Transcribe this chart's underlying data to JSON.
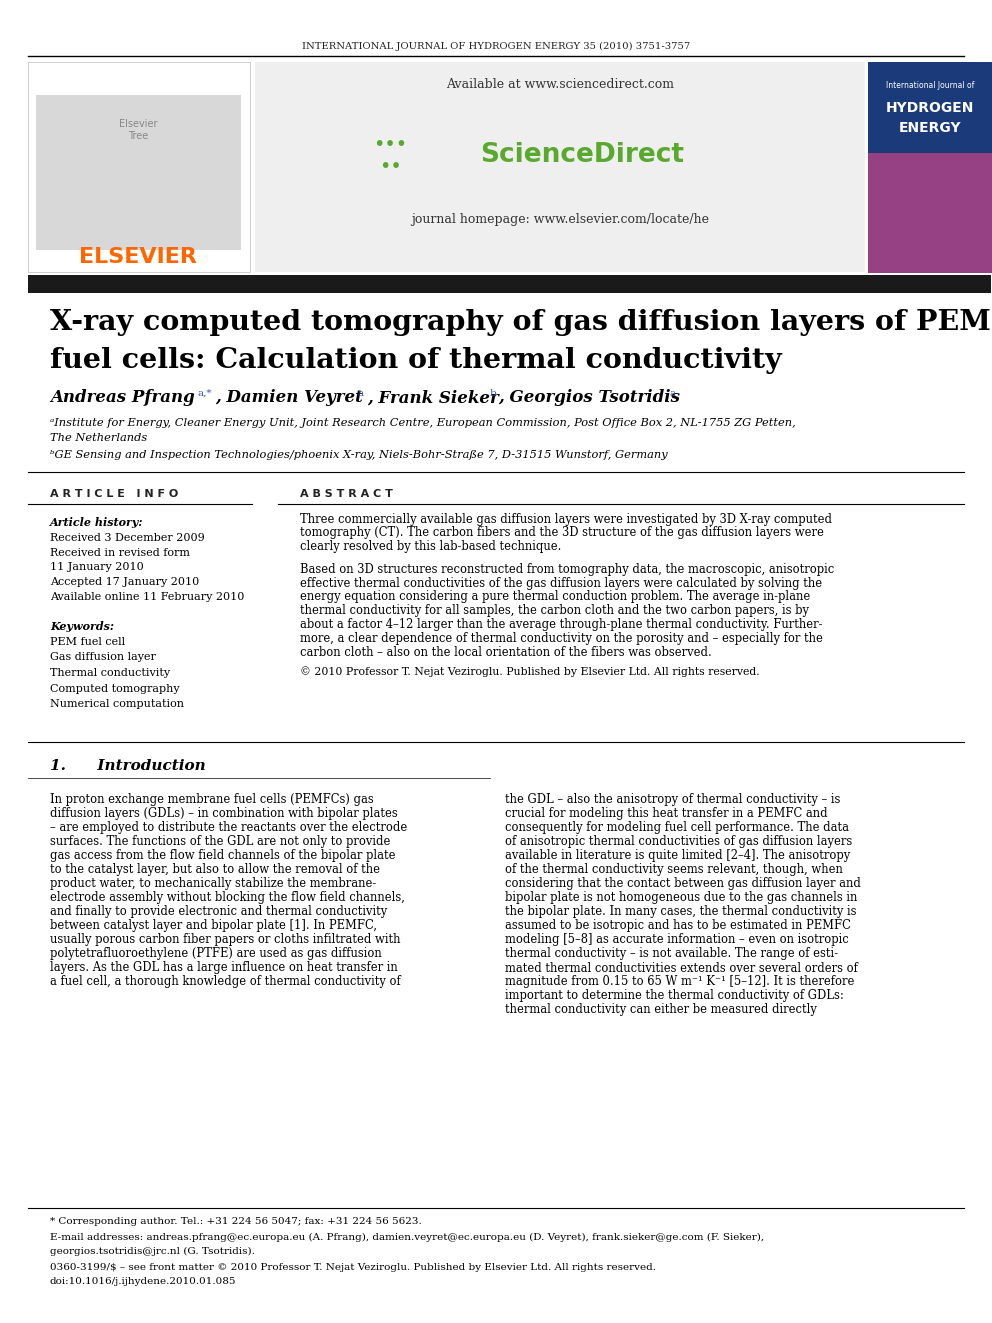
{
  "journal_header": "INTERNATIONAL JOURNAL OF HYDROGEN ENERGY 35 (2010) 3751-3757",
  "title_line1": "X-ray computed tomography of gas diffusion layers of PEM",
  "title_line2": "fuel cells: Calculation of thermal conductivity",
  "affiliation_a": "ᵃInstitute for Energy, Cleaner Energy Unit, Joint Research Centre, European Commission, Post Office Box 2, NL-1755 ZG Petten,",
  "affiliation_a2": "The Netherlands",
  "affiliation_b": "ᵇGE Sensing and Inspection Technologies/phoenix X-ray, Niels-Bohr-Straße 7, D-31515 Wunstorf, Germany",
  "article_info_header": "A R T I C L E   I N F O",
  "abstract_header": "A B S T R A C T",
  "article_history_label": "Article history:",
  "received1": "Received 3 December 2009",
  "received2": "Received in revised form",
  "received2b": "11 January 2010",
  "accepted": "Accepted 17 January 2010",
  "available": "Available online 11 February 2010",
  "keywords_label": "Keywords:",
  "keyword1": "PEM fuel cell",
  "keyword2": "Gas diffusion layer",
  "keyword3": "Thermal conductivity",
  "keyword4": "Computed tomography",
  "keyword5": "Numerical computation",
  "abstract_text1": "Three commercially available gas diffusion layers were investigated by 3D X-ray computed",
  "abstract_text2": "tomography (CT). The carbon fibers and the 3D structure of the gas diffusion layers were",
  "abstract_text3": "clearly resolved by this lab-based technique.",
  "abstract_text4": "Based on 3D structures reconstructed from tomography data, the macroscopic, anisotropic",
  "abstract_text5": "effective thermal conductivities of the gas diffusion layers were calculated by solving the",
  "abstract_text6": "energy equation considering a pure thermal conduction problem. The average in-plane",
  "abstract_text7": "thermal conductivity for all samples, the carbon cloth and the two carbon papers, is by",
  "abstract_text8": "about a factor 4–12 larger than the average through-plane thermal conductivity. Further-",
  "abstract_text9": "more, a clear dependence of thermal conductivity on the porosity and – especially for the",
  "abstract_text10": "carbon cloth – also on the local orientation of the fibers was observed.",
  "copyright": "© 2010 Professor T. Nejat Veziroglu. Published by Elsevier Ltd. All rights reserved.",
  "intro_header": "1.      Introduction",
  "intro_col1_line1": "In proton exchange membrane fuel cells (PEMFCs) gas",
  "intro_col1_line2": "diffusion layers (GDLs) – in combination with bipolar plates",
  "intro_col1_line3": "– are employed to distribute the reactants over the electrode",
  "intro_col1_line4": "surfaces. The functions of the GDL are not only to provide",
  "intro_col1_line5": "gas access from the flow field channels of the bipolar plate",
  "intro_col1_line6": "to the catalyst layer, but also to allow the removal of the",
  "intro_col1_line7": "product water, to mechanically stabilize the membrane-",
  "intro_col1_line8": "electrode assembly without blocking the flow field channels,",
  "intro_col1_line9": "and finally to provide electronic and thermal conductivity",
  "intro_col1_line10": "between catalyst layer and bipolar plate [1]. In PEMFC,",
  "intro_col1_line11": "usually porous carbon fiber papers or cloths infiltrated with",
  "intro_col1_line12": "polytetrafluoroethylene (PTFE) are used as gas diffusion",
  "intro_col1_line13": "layers. As the GDL has a large influence on heat transfer in",
  "intro_col1_line14": "a fuel cell, a thorough knowledge of thermal conductivity of",
  "intro_col2_line1": "the GDL – also the anisotropy of thermal conductivity – is",
  "intro_col2_line2": "crucial for modeling this heat transfer in a PEMFC and",
  "intro_col2_line3": "consequently for modeling fuel cell performance. The data",
  "intro_col2_line4": "of anisotropic thermal conductivities of gas diffusion layers",
  "intro_col2_line5": "available in literature is quite limited [2–4]. The anisotropy",
  "intro_col2_line6": "of the thermal conductivity seems relevant, though, when",
  "intro_col2_line7": "considering that the contact between gas diffusion layer and",
  "intro_col2_line8": "bipolar plate is not homogeneous due to the gas channels in",
  "intro_col2_line9": "the bipolar plate. In many cases, the thermal conductivity is",
  "intro_col2_line10": "assumed to be isotropic and has to be estimated in PEMFC",
  "intro_col2_line11": "modeling [5–8] as accurate information – even on isotropic",
  "intro_col2_line12": "thermal conductivity – is not available. The range of esti-",
  "intro_col2_line13": "mated thermal conductivities extends over several orders of",
  "intro_col2_line14": "magnitude from 0.15 to 65 W m⁻¹ K⁻¹ [5–12]. It is therefore",
  "intro_col2_line15": "important to determine the thermal conductivity of GDLs:",
  "intro_col2_line16": "thermal conductivity can either be measured directly",
  "footnote1": "* Corresponding author. Tel.: +31 224 56 5047; fax: +31 224 56 5623.",
  "footnote2": "E-mail addresses: andreas.pfrang@ec.europa.eu (A. Pfrang), damien.veyret@ec.europa.eu (D. Veyret), frank.sieker@ge.com (F. Sieker),",
  "footnote3": "georgios.tsotridis@jrc.nl (G. Tsotridis).",
  "footnote4": "0360-3199/$ – see front matter © 2010 Professor T. Nejat Veziroglu. Published by Elsevier Ltd. All rights reserved.",
  "footnote5": "doi:10.1016/j.ijhydene.2010.01.085",
  "elsevier_color": "#FF6600",
  "sciencedirect_url": "Available at www.sciencedirect.com",
  "journal_url": "journal homepage: www.elsevier.com/locate/he",
  "bg_color": "#ffffff",
  "title_color": "#000000",
  "header_bg": "#f0f0f0",
  "journal_cover_bg": "#1a3a7a"
}
